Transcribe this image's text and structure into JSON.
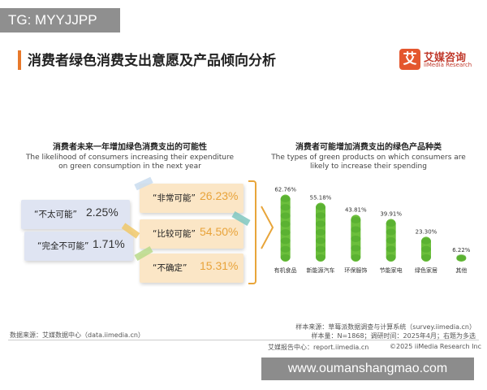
{
  "watermark_top": "TG: MYYJJPP",
  "watermark_bottom": "www.oumanshangmao.com",
  "title": "消费者绿色消费支出意愿及产品倾向分析",
  "brand": {
    "logo_char": "艾",
    "name": "艾媒咨询",
    "name_en": "iiMedia Research"
  },
  "left_panel": {
    "title_cn": "消费者未来一年增加绿色消费支出的可能性",
    "title_en_line1": "The likelihood of consumers increasing their expenditure",
    "title_en_line2": "on green consumption in the next year",
    "items": [
      {
        "label": "“非常可能”",
        "value": "26.23%",
        "color": "#e8a33a",
        "bg": "#fbe6c6"
      },
      {
        "label": "“不太可能”",
        "value": "2.25%",
        "color": "#333333",
        "bg": "#dfe4f2"
      },
      {
        "label": "“比较可能”",
        "value": "54.50%",
        "color": "#e8a33a",
        "bg": "#fbe6c6"
      },
      {
        "label": "“完全不可能”",
        "value": "1.71%",
        "color": "#333333",
        "bg": "#dfe4f2"
      },
      {
        "label": "“不确定”",
        "value": "15.31%",
        "color": "#e8a33a",
        "bg": "#fbe6c6"
      }
    ]
  },
  "chart_data": {
    "type": "bar",
    "title": "消费者可能增加消费支出的绿色产品种类",
    "subtitle_line1": "The types of green products on which consumers are",
    "subtitle_line2": "likely to increase their spending",
    "categories": [
      "有机食品",
      "新能源汽车",
      "环保服饰",
      "节能家电",
      "绿色家居",
      "其他"
    ],
    "values": [
      62.76,
      55.18,
      43.81,
      39.91,
      23.3,
      6.22
    ],
    "value_labels": [
      "62.76%",
      "55.18%",
      "43.81%",
      "39.91%",
      "23.30%",
      "6.22%"
    ],
    "bar_color": "#6cbf3c",
    "ylim": [
      0,
      70
    ]
  },
  "footer": {
    "source_left": "数据来源：艾媒数据中心（data.iimedia.cn）",
    "sample_source": "样本来源：草莓派数据调查与计算系统（survey.iimedia.cn）",
    "sample_info": "样本量：N=1868；调研时间：2025年4月；右题为多选",
    "report_center": "艾媒报告中心：report.iimedia.cn",
    "copyright": "©2025  iiMedia Research  Inc"
  }
}
